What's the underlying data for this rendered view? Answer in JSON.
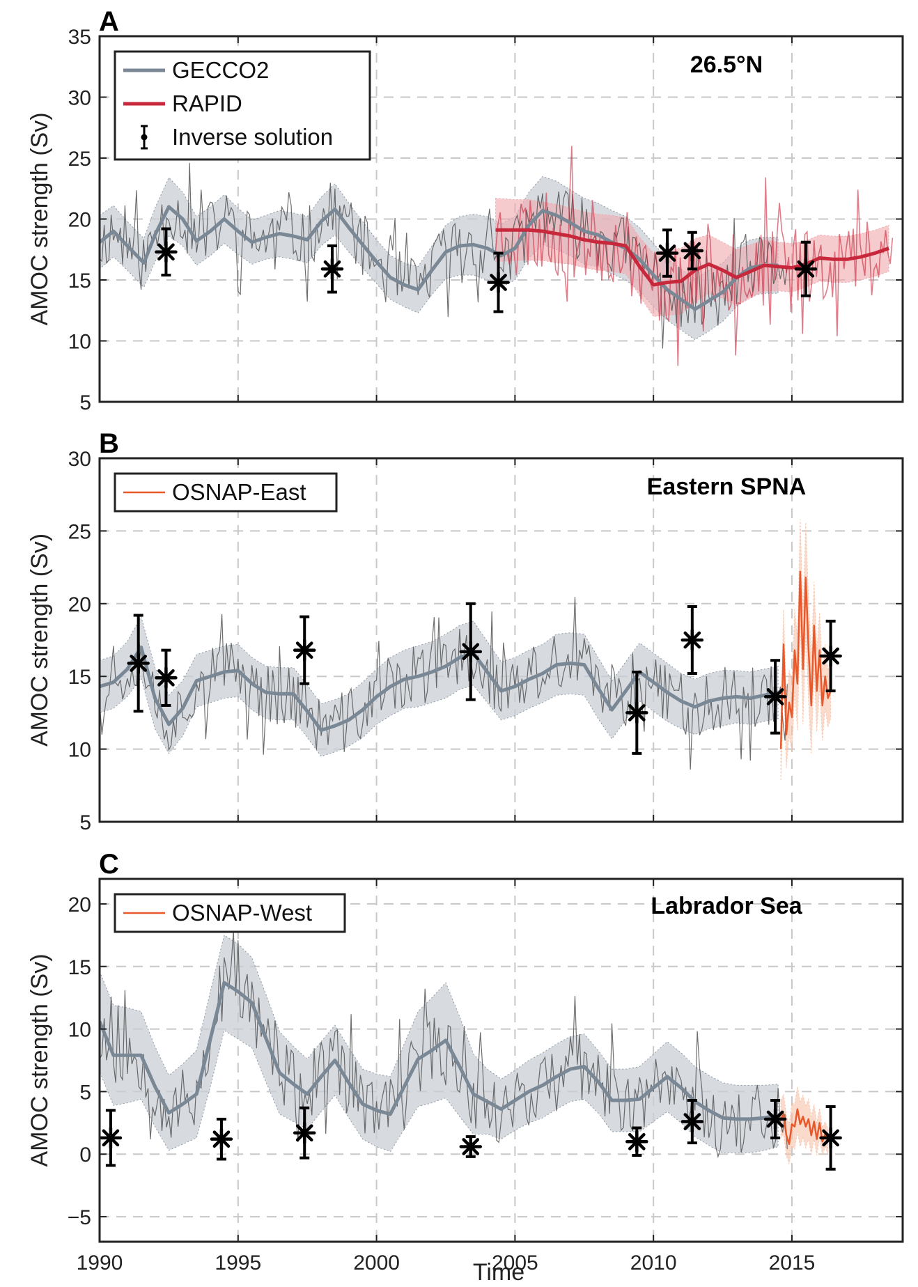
{
  "colors": {
    "gecco2": "#7a8896",
    "gecco2_band": "#c9cfd6",
    "gecco2_monthly": "#555555",
    "rapid": "#c8283c",
    "rapid_band": "#f0a8ae",
    "osnap": "#e8582a",
    "osnap_band": "#f7c2a8",
    "inverse": "#000000",
    "grid": "#c8c8c8",
    "axes": "#222222"
  },
  "x_axis": {
    "label": "Time",
    "range": [
      1990,
      2019
    ],
    "ticks": [
      1990,
      1995,
      2000,
      2005,
      2010,
      2015
    ]
  },
  "chart_data": [
    {
      "type": "line",
      "panel": "A",
      "region": "26.5°N",
      "ylabel": "AMOC strength (Sv)",
      "ylim": [
        5,
        35
      ],
      "yticks": [
        5,
        10,
        15,
        20,
        25,
        30,
        35
      ],
      "grid": true,
      "legend": {
        "placement": "top-left",
        "entries": [
          {
            "label": "GECCO2",
            "style": "thick-line",
            "color_key": "gecco2"
          },
          {
            "label": "RAPID",
            "style": "thick-line",
            "color_key": "rapid"
          },
          {
            "label": "Inverse solution",
            "style": "errorbar",
            "color_key": "inverse"
          }
        ]
      },
      "series": [
        {
          "name": "GECCO2",
          "role": "annual",
          "color_key": "gecco2",
          "x": [
            1990,
            1990.5,
            1991,
            1991.6,
            1992,
            1992.5,
            1993,
            1993.5,
            1994,
            1994.5,
            1995,
            1995.5,
            1996,
            1996.5,
            1997,
            1997.5,
            1998,
            1998.5,
            1999,
            1999.5,
            2000,
            2000.5,
            2001,
            2001.5,
            2002,
            2002.5,
            2003,
            2003.5,
            2004,
            2004.5,
            2005,
            2005.5,
            2006,
            2006.5,
            2007,
            2007.5,
            2008,
            2008.5,
            2009,
            2009.5,
            2010,
            2010.5,
            2011,
            2011.5,
            2012,
            2012.5,
            2013,
            2013.5,
            2014,
            2014.5
          ],
          "y": [
            18.1,
            19.0,
            17.8,
            16.4,
            18.7,
            21.0,
            20.0,
            18.2,
            19.0,
            20.0,
            19.0,
            18.1,
            18.5,
            18.8,
            18.6,
            18.3,
            19.8,
            20.8,
            19.3,
            17.9,
            16.5,
            15.2,
            14.6,
            14.2,
            15.8,
            17.3,
            17.8,
            17.9,
            17.6,
            17.0,
            17.6,
            19.5,
            20.7,
            20.3,
            19.7,
            19.0,
            18.7,
            18.1,
            17.6,
            16.7,
            15.4,
            14.2,
            13.4,
            12.6,
            13.3,
            14.0,
            15.2,
            16.0,
            16.2,
            16.2
          ],
          "band": [
            2.2,
            2.1,
            2.0,
            2.0,
            2.2,
            2.4,
            2.2,
            2.0,
            2.0,
            2.0,
            1.9,
            1.8,
            1.8,
            1.9,
            1.9,
            1.9,
            2.0,
            2.1,
            2.0,
            1.9,
            1.8,
            1.8,
            1.8,
            1.9,
            2.0,
            2.2,
            2.4,
            2.5,
            2.6,
            2.6,
            2.6,
            2.7,
            2.8,
            2.8,
            2.7,
            2.7,
            2.6,
            2.6,
            2.6,
            2.6,
            2.6,
            2.5,
            2.5,
            2.5,
            2.5,
            2.4,
            2.4,
            2.3,
            2.3,
            2.3
          ]
        },
        {
          "name": "RAPID",
          "role": "annual",
          "color_key": "rapid",
          "x": [
            2004.3,
            2005,
            2005.5,
            2006,
            2006.5,
            2007,
            2007.5,
            2008,
            2008.5,
            2009,
            2009.5,
            2010,
            2010.5,
            2011,
            2011.5,
            2012,
            2012.5,
            2013,
            2013.5,
            2014,
            2014.5,
            2015,
            2015.5,
            2016,
            2016.5,
            2017,
            2017.5,
            2018,
            2018.5
          ],
          "y": [
            19.1,
            19.1,
            19.1,
            19.0,
            18.8,
            18.6,
            18.3,
            18.1,
            18.0,
            17.8,
            16.1,
            14.6,
            14.8,
            14.9,
            15.8,
            16.3,
            15.8,
            15.2,
            15.7,
            16.2,
            16.1,
            16.0,
            16.3,
            16.8,
            16.7,
            16.7,
            16.9,
            17.2,
            17.6
          ],
          "band": [
            2.6,
            2.5,
            2.5,
            2.4,
            2.4,
            2.3,
            2.3,
            2.3,
            2.3,
            2.3,
            2.4,
            2.6,
            2.7,
            2.7,
            2.6,
            2.4,
            2.3,
            2.3,
            2.2,
            2.1,
            2.0,
            2.0,
            1.9,
            1.9,
            1.9,
            1.9,
            1.9,
            1.9,
            1.9
          ]
        }
      ],
      "monthly": [
        {
          "name": "GECCO2",
          "color_key": "gecco2_monthly",
          "x_start": 1990,
          "x_end": 2014.9,
          "y_min": 5.5,
          "y_max": 26.5,
          "follows": 0,
          "amplitude": 2.6,
          "seed": 11
        },
        {
          "name": "RAPID",
          "color_key": "rapid",
          "x_start": 2004.3,
          "x_end": 2018.7,
          "y_min": 6.0,
          "y_max": 26.0,
          "follows": 1,
          "amplitude": 3.4,
          "seed": 23
        }
      ],
      "inverse_solution": [
        {
          "x": 1992.4,
          "y": 17.3,
          "err": 1.9
        },
        {
          "x": 1998.4,
          "y": 15.9,
          "err": 1.9
        },
        {
          "x": 2004.4,
          "y": 14.8,
          "err": 2.4
        },
        {
          "x": 2010.5,
          "y": 17.2,
          "err": 1.9
        },
        {
          "x": 2011.4,
          "y": 17.4,
          "err": 1.5
        },
        {
          "x": 2015.5,
          "y": 15.9,
          "err": 2.2
        }
      ]
    },
    {
      "type": "line",
      "panel": "B",
      "region": "Eastern SPNA",
      "ylabel": "AMOC strength (Sv)",
      "ylim": [
        5,
        30
      ],
      "yticks": [
        5,
        10,
        15,
        20,
        25,
        30
      ],
      "grid": true,
      "legend": {
        "placement": "top-left",
        "entries": [
          {
            "label": "OSNAP-East",
            "style": "thin-line",
            "color_key": "osnap"
          }
        ]
      },
      "series": [
        {
          "name": "GECCO2",
          "role": "annual",
          "color_key": "gecco2",
          "x": [
            1990,
            1990.5,
            1991,
            1991.5,
            1992,
            1992.5,
            1993,
            1993.5,
            1994,
            1994.5,
            1995,
            1995.5,
            1996,
            1996.5,
            1997,
            1997.5,
            1998,
            1998.5,
            1999,
            1999.5,
            2000,
            2000.5,
            2001,
            2001.5,
            2002,
            2002.5,
            2003,
            2003.5,
            2004,
            2004.5,
            2005,
            2005.5,
            2006,
            2006.5,
            2007,
            2007.5,
            2008,
            2008.5,
            2009,
            2009.5,
            2010,
            2010.5,
            2011,
            2011.5,
            2012,
            2012.5,
            2013,
            2013.5,
            2014,
            2014.5
          ],
          "y": [
            14.3,
            14.6,
            15.5,
            17.0,
            13.5,
            11.7,
            12.8,
            14.7,
            15.0,
            15.3,
            15.4,
            14.5,
            13.9,
            13.8,
            13.8,
            12.6,
            11.3,
            11.6,
            12.0,
            12.7,
            13.6,
            14.3,
            14.8,
            15.0,
            15.3,
            15.7,
            16.3,
            16.6,
            15.3,
            14.0,
            14.3,
            14.8,
            15.2,
            15.8,
            15.9,
            15.8,
            14.2,
            12.7,
            14.0,
            15.3,
            14.6,
            13.9,
            13.3,
            12.9,
            13.3,
            13.5,
            13.6,
            13.5,
            13.7,
            13.9
          ],
          "band": [
            1.8,
            1.8,
            1.9,
            2.1,
            2.1,
            2.0,
            1.9,
            1.8,
            1.8,
            1.8,
            1.8,
            1.8,
            1.8,
            1.8,
            1.8,
            1.8,
            1.8,
            1.8,
            1.8,
            1.9,
            1.9,
            2.0,
            2.0,
            2.1,
            2.1,
            2.2,
            2.2,
            2.2,
            2.1,
            2.0,
            2.0,
            2.0,
            2.0,
            2.1,
            2.1,
            2.1,
            2.1,
            2.0,
            2.0,
            2.0,
            2.0,
            2.0,
            1.9,
            1.9,
            1.9,
            1.9,
            1.8,
            1.8,
            1.8,
            1.8
          ]
        },
        {
          "name": "OSNAP-East",
          "role": "monthly",
          "color_key": "osnap",
          "x": [
            2014.6,
            2014.7,
            2014.8,
            2014.9,
            2015.0,
            2015.1,
            2015.2,
            2015.3,
            2015.4,
            2015.5,
            2015.6,
            2015.7,
            2015.8,
            2015.9,
            2016.0,
            2016.1,
            2016.2,
            2016.3,
            2016.4
          ],
          "y": [
            10.0,
            17.2,
            11.0,
            13.2,
            12.2,
            16.8,
            14.5,
            22.2,
            15.5,
            21.8,
            16.9,
            13.0,
            18.5,
            14.0,
            16.8,
            13.0,
            15.0,
            13.5,
            14.0
          ],
          "band": [
            2.2,
            2.4,
            2.3,
            2.2,
            2.4,
            2.8,
            3.2,
            3.6,
            3.8,
            3.8,
            3.6,
            3.3,
            3.0,
            2.8,
            2.6,
            2.4,
            2.2,
            2.0,
            1.9
          ]
        }
      ],
      "monthly": [
        {
          "name": "GECCO2",
          "color_key": "gecco2_monthly",
          "x_start": 1990,
          "x_end": 2014.9,
          "y_min": 5.0,
          "y_max": 22.0,
          "follows": 0,
          "amplitude": 2.2,
          "seed": 37
        }
      ],
      "inverse_solution": [
        {
          "x": 1991.4,
          "y": 15.9,
          "err": 3.3
        },
        {
          "x": 1992.4,
          "y": 14.9,
          "err": 1.9
        },
        {
          "x": 1997.4,
          "y": 16.8,
          "err": 2.3
        },
        {
          "x": 2003.4,
          "y": 16.7,
          "err": 3.3
        },
        {
          "x": 2009.4,
          "y": 12.5,
          "err": 2.8
        },
        {
          "x": 2011.4,
          "y": 17.5,
          "err": 2.3
        },
        {
          "x": 2014.4,
          "y": 13.6,
          "err": 2.5
        },
        {
          "x": 2016.4,
          "y": 16.4,
          "err": 2.4
        }
      ]
    },
    {
      "type": "line",
      "panel": "C",
      "region": "Labrador Sea",
      "ylabel": "AMOC strength (Sv)",
      "ylim": [
        -7,
        22
      ],
      "yticks": [
        -5,
        0,
        5,
        10,
        15,
        20
      ],
      "grid": true,
      "legend": {
        "placement": "top-left",
        "entries": [
          {
            "label": "OSNAP-West",
            "style": "thin-line",
            "color_key": "osnap"
          }
        ]
      },
      "series": [
        {
          "name": "GECCO2",
          "role": "annual",
          "color_key": "gecco2",
          "x": [
            1990,
            1990.5,
            1991,
            1991.5,
            1992,
            1992.5,
            1993,
            1993.5,
            1994,
            1994.5,
            1995,
            1995.5,
            1996,
            1996.5,
            1997,
            1997.5,
            1998,
            1998.5,
            1999,
            1999.5,
            2000,
            2000.5,
            2001,
            2001.5,
            2002,
            2002.5,
            2003,
            2003.5,
            2004,
            2004.5,
            2005,
            2005.5,
            2006,
            2006.5,
            2007,
            2007.5,
            2008,
            2008.5,
            2009,
            2009.5,
            2010,
            2010.5,
            2011,
            2011.5,
            2012,
            2012.5,
            2013,
            2013.5,
            2014,
            2014.5
          ],
          "y": [
            10.6,
            7.9,
            7.9,
            7.9,
            5.4,
            3.3,
            4.0,
            4.8,
            9.2,
            13.7,
            13.0,
            12.1,
            9.3,
            6.5,
            5.6,
            4.8,
            6.2,
            7.5,
            5.7,
            4.0,
            3.5,
            3.2,
            5.4,
            7.6,
            8.3,
            9.1,
            7.0,
            4.8,
            4.2,
            3.6,
            4.3,
            5.0,
            5.5,
            6.2,
            6.8,
            7.0,
            5.8,
            4.3,
            4.3,
            4.4,
            5.3,
            6.2,
            5.3,
            4.2,
            3.5,
            2.9,
            2.8,
            2.8,
            2.9,
            3.1
          ],
          "band": [
            4.0,
            4.0,
            3.8,
            3.5,
            3.2,
            3.0,
            3.2,
            3.5,
            3.8,
            3.8,
            3.8,
            3.6,
            3.5,
            3.3,
            3.0,
            2.8,
            2.8,
            2.8,
            2.8,
            2.8,
            2.9,
            3.0,
            3.4,
            3.8,
            4.2,
            4.6,
            4.0,
            3.2,
            2.6,
            2.4,
            2.4,
            2.5,
            2.6,
            2.6,
            2.6,
            2.6,
            2.5,
            2.5,
            2.5,
            2.6,
            2.7,
            2.8,
            2.8,
            2.8,
            2.8,
            2.8,
            2.7,
            2.7,
            2.6,
            2.5
          ]
        },
        {
          "name": "OSNAP-West",
          "role": "monthly",
          "color_key": "osnap",
          "x": [
            2014.6,
            2014.7,
            2014.8,
            2014.9,
            2015.0,
            2015.1,
            2015.2,
            2015.3,
            2015.4,
            2015.5,
            2015.6,
            2015.7,
            2015.8,
            2015.9,
            2016.0,
            2016.1,
            2016.2,
            2016.3
          ],
          "y": [
            2.8,
            3.2,
            1.5,
            0.8,
            2.4,
            2.2,
            3.6,
            2.4,
            3.0,
            2.2,
            2.8,
            1.5,
            2.6,
            1.2,
            2.5,
            1.0,
            1.6,
            1.0
          ],
          "band": [
            1.5,
            1.6,
            1.6,
            1.6,
            1.7,
            1.8,
            1.8,
            1.8,
            1.7,
            1.7,
            1.6,
            1.5,
            1.4,
            1.3,
            1.2,
            1.1,
            1.0,
            1.0
          ]
        }
      ],
      "monthly": [
        {
          "name": "GECCO2",
          "color_key": "gecco2_monthly",
          "x_start": 1990,
          "x_end": 2014.9,
          "y_min": -0.2,
          "y_max": 22.0,
          "follows": 0,
          "amplitude": 2.8,
          "seed": 53
        }
      ],
      "inverse_solution": [
        {
          "x": 1990.4,
          "y": 1.3,
          "err": 2.2
        },
        {
          "x": 1994.4,
          "y": 1.2,
          "err": 1.6
        },
        {
          "x": 1997.4,
          "y": 1.7,
          "err": 2.0
        },
        {
          "x": 2003.4,
          "y": 0.6,
          "err": 0.8
        },
        {
          "x": 2009.4,
          "y": 1.0,
          "err": 1.1
        },
        {
          "x": 2011.4,
          "y": 2.6,
          "err": 1.7
        },
        {
          "x": 2014.4,
          "y": 2.8,
          "err": 1.5
        },
        {
          "x": 2016.4,
          "y": 1.3,
          "err": 2.5
        }
      ]
    }
  ]
}
